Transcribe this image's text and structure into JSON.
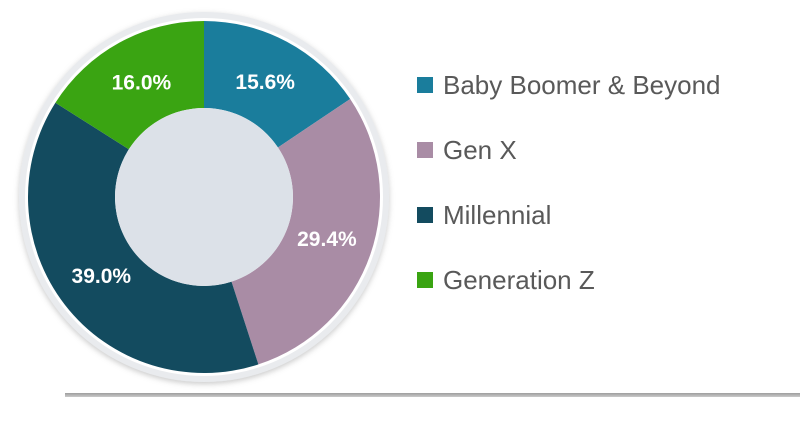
{
  "chart_data": {
    "type": "pie",
    "subtype": "donut",
    "title": "",
    "legend_position": "right",
    "direction": "clockwise",
    "start_angle_deg": 0,
    "categories": [
      "Baby Boomer & Beyond",
      "Gen X",
      "Millennial",
      "Generation Z"
    ],
    "values": [
      15.6,
      29.4,
      39.0,
      16.0
    ],
    "data_labels": [
      "15.6%",
      "29.4%",
      "39.0%",
      "16.0%"
    ],
    "colors": [
      "#1A7D9C",
      "#A98CA5",
      "#134B5F",
      "#3AA412"
    ],
    "data_label_color": "#FFFFFF",
    "hole_color": "#DCE1E8",
    "platter_color": "#E9EBEE",
    "legend_text_color": "#595959"
  },
  "divider": {
    "color": "#ABABAB"
  }
}
